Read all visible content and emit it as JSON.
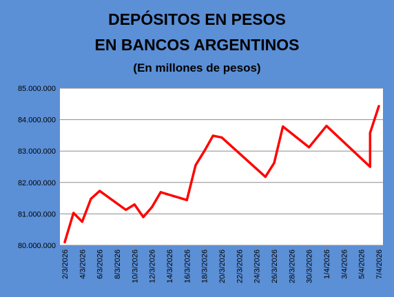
{
  "chart_data": {
    "type": "line",
    "title_lines": [
      "DEPÓSITOS EN PESOS",
      "EN BANCOS ARGENTINOS"
    ],
    "subtitle": "(En millones de pesos)",
    "xlabel": "",
    "ylabel": "",
    "ylim": [
      80000000,
      85000000
    ],
    "yticks": [
      80000000,
      81000000,
      82000000,
      83000000,
      84000000,
      85000000
    ],
    "ytick_labels": [
      "80.000.000",
      "81.000.000",
      "82.000.000",
      "83.000.000",
      "84.000.000",
      "85.000.000"
    ],
    "xlim": [
      "2026-03-02",
      "2026-04-07"
    ],
    "xticks": [
      "2026-03-02",
      "2026-03-04",
      "2026-03-06",
      "2026-03-08",
      "2026-03-10",
      "2026-03-12",
      "2026-03-14",
      "2026-03-16",
      "2026-03-18",
      "2026-03-20",
      "2026-03-22",
      "2026-03-24",
      "2026-03-26",
      "2026-03-28",
      "2026-03-30",
      "2026-04-01",
      "2026-04-03",
      "2026-04-05",
      "2026-04-07"
    ],
    "xtick_labels": [
      "2/3/2026",
      "4/3/2026",
      "6/3/2026",
      "8/3/2026",
      "10/3/2026",
      "12/3/2026",
      "14/3/2026",
      "16/3/2026",
      "18/3/2026",
      "20/3/2026",
      "22/3/2026",
      "24/3/2026",
      "26/3/2026",
      "28/3/2026",
      "30/3/2026",
      "1/4/2026",
      "3/4/2026",
      "5/4/2026",
      "7/4/2026"
    ],
    "grid": true,
    "series": [
      {
        "color": "#ff0000",
        "points": [
          {
            "x": "2026-03-02",
            "y": 80100000
          },
          {
            "x": "2026-03-03",
            "y": 81030000
          },
          {
            "x": "2026-03-04",
            "y": 80750000
          },
          {
            "x": "2026-03-05",
            "y": 81480000
          },
          {
            "x": "2026-03-06",
            "y": 81730000
          },
          {
            "x": "2026-03-09",
            "y": 81130000
          },
          {
            "x": "2026-03-10",
            "y": 81300000
          },
          {
            "x": "2026-03-11",
            "y": 80900000
          },
          {
            "x": "2026-03-12",
            "y": 81220000
          },
          {
            "x": "2026-03-13",
            "y": 81690000
          },
          {
            "x": "2026-03-16",
            "y": 81440000
          },
          {
            "x": "2026-03-17",
            "y": 82550000
          },
          {
            "x": "2026-03-18",
            "y": 83000000
          },
          {
            "x": "2026-03-19",
            "y": 83490000
          },
          {
            "x": "2026-03-20",
            "y": 83430000
          },
          {
            "x": "2026-03-25",
            "y": 82180000
          },
          {
            "x": "2026-03-26",
            "y": 82620000
          },
          {
            "x": "2026-03-27",
            "y": 83780000
          },
          {
            "x": "2026-03-30",
            "y": 83120000
          },
          {
            "x": "2026-04-01",
            "y": 83800000
          },
          {
            "x": "2026-04-06",
            "y": 82500000
          },
          {
            "x": "2026-04-06",
            "y": 83580000
          },
          {
            "x": "2026-04-07",
            "y": 84430000
          }
        ]
      }
    ]
  }
}
